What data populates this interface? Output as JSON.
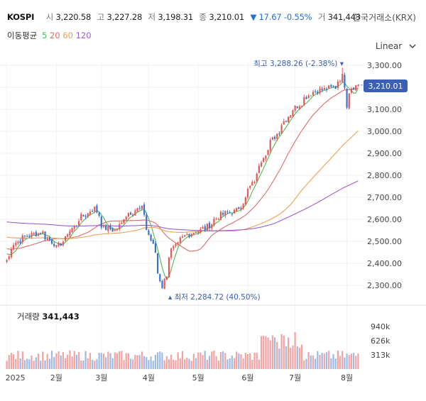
{
  "header": {
    "symbol": "KOSPI",
    "open_label": "시",
    "open": "3,220.58",
    "high_label": "고",
    "high": "3,227.28",
    "low_label": "저",
    "low": "3,198.31",
    "close_label": "종",
    "close": "3,210.01",
    "change": "▼ 17.67 -0.55%",
    "volume_label": "거",
    "volume": "341,443",
    "exchange": "한국거래소(KRX)"
  },
  "ma_legend": {
    "title": "이동평균",
    "periods": [
      "5",
      "20",
      "60",
      "120"
    ]
  },
  "scale_select": {
    "value": "Linear"
  },
  "volume_panel": {
    "label": "거래량",
    "value": "341,443"
  },
  "annotations": {
    "high": "최고 3,288.26 (-2.38%)",
    "low": "최저 2,284.72 (40.50%)"
  },
  "price_tag": "3,210.01",
  "colors": {
    "up": "#e05a5a",
    "down": "#3b73c9",
    "ma5": "#52b852",
    "ma20": "#e06b6b",
    "ma60": "#f0a050",
    "ma120": "#9a5fd0",
    "tag_bg": "#3b5fb5",
    "change": "#1e6fd9"
  },
  "chart_data": [
    {
      "type": "candlestick",
      "title": "KOSPI",
      "x": [
        "2025",
        "2월",
        "3월",
        "4월",
        "5월",
        "6월",
        "7월",
        "8월"
      ],
      "ylim": [
        2250,
        3320
      ],
      "y_ticks": [
        "3,300.00",
        "3,200.00",
        "3,100.00",
        "3,000.00",
        "2,900.00",
        "2,800.00",
        "2,700.00",
        "2,600.00",
        "2,500.00",
        "2,400.00",
        "2,300.00"
      ],
      "anchors": [
        [
          "2025-01-02",
          2415
        ],
        [
          "2025-01-07",
          2490
        ],
        [
          "2025-01-15",
          2525
        ],
        [
          "2025-01-24",
          2540
        ],
        [
          "2025-02-03",
          2470
        ],
        [
          "2025-02-10",
          2540
        ],
        [
          "2025-02-18",
          2610
        ],
        [
          "2025-02-26",
          2650
        ],
        [
          "2025-03-04",
          2560
        ],
        [
          "2025-03-11",
          2550
        ],
        [
          "2025-03-19",
          2630
        ],
        [
          "2025-03-27",
          2650
        ],
        [
          "2025-04-03",
          2480
        ],
        [
          "2025-04-09",
          2295
        ],
        [
          "2025-04-15",
          2460
        ],
        [
          "2025-04-24",
          2530
        ],
        [
          "2025-05-06",
          2560
        ],
        [
          "2025-05-15",
          2620
        ],
        [
          "2025-05-26",
          2640
        ],
        [
          "2025-06-04",
          2760
        ],
        [
          "2025-06-11",
          2890
        ],
        [
          "2025-06-20",
          3000
        ],
        [
          "2025-06-27",
          3080
        ],
        [
          "2025-07-04",
          3130
        ],
        [
          "2025-07-11",
          3180
        ],
        [
          "2025-07-18",
          3190
        ],
        [
          "2025-07-25",
          3200
        ],
        [
          "2025-07-30",
          3250
        ],
        [
          "2025-07-31",
          3210
        ],
        [
          "2025-08-01",
          3120
        ],
        [
          "2025-08-05",
          3200
        ],
        [
          "2025-08-08",
          3210
        ]
      ],
      "ma_end_values": {
        "ma5": 3205,
        "ma20": 3190,
        "ma60": 2990,
        "ma120": 2770
      },
      "high": 3288.26,
      "low": 2284.72,
      "last": 3210.01
    },
    {
      "type": "bar",
      "title": "거래량",
      "y_ticks": [
        "940k",
        "626k",
        "313k"
      ],
      "last": 341443
    }
  ]
}
